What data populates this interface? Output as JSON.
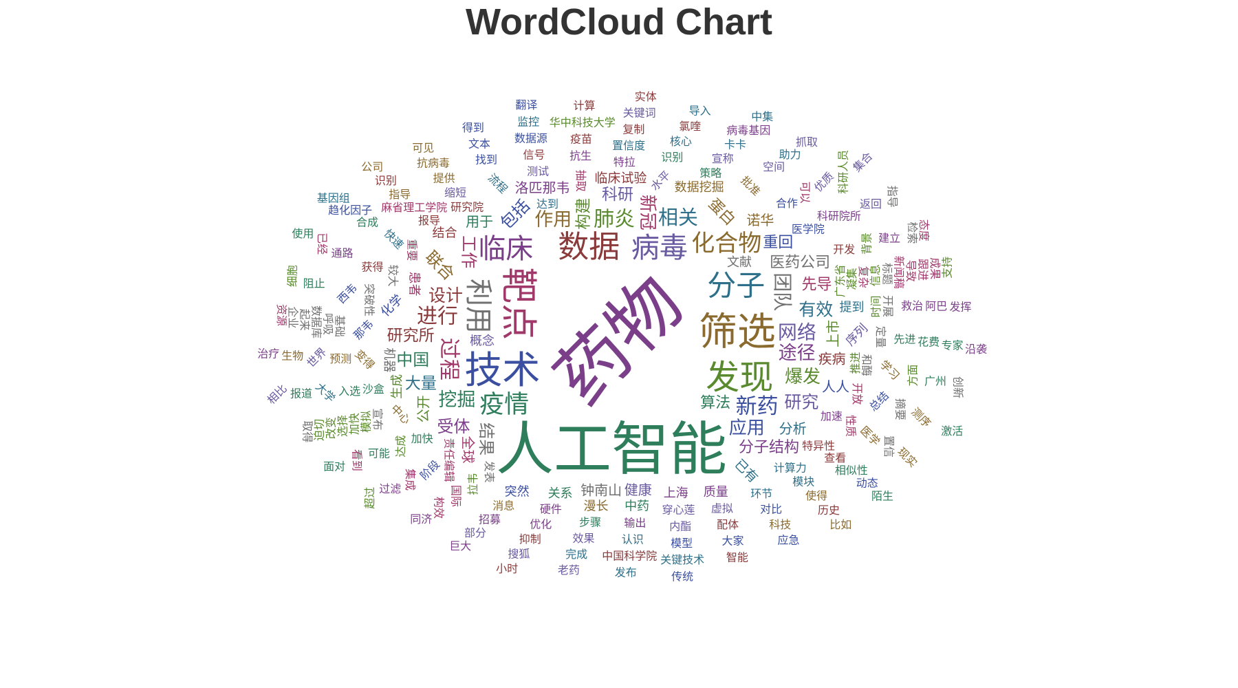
{
  "chart_data": {
    "type": "wordcloud",
    "title": "WordCloud Chart",
    "palette": [
      "#7b3f8a",
      "#2e7d5b",
      "#8a6a2e",
      "#3a4fa0",
      "#a0386a",
      "#5a8a2e",
      "#8a3a3a",
      "#2e6f8a",
      "#6a5aa0",
      "#707070"
    ],
    "words": [
      {
        "text": "药物",
        "weight": 100
      },
      {
        "text": "人工智能",
        "weight": 82
      },
      {
        "text": "筛选",
        "weight": 56
      },
      {
        "text": "技术",
        "weight": 55
      },
      {
        "text": "靶点",
        "weight": 54
      },
      {
        "text": "发现",
        "weight": 50
      },
      {
        "text": "数据",
        "weight": 46
      },
      {
        "text": "分子",
        "weight": 44
      },
      {
        "text": "病毒",
        "weight": 43
      },
      {
        "text": "利用",
        "weight": 42
      },
      {
        "text": "临床",
        "weight": 42
      },
      {
        "text": "疫情",
        "weight": 38
      },
      {
        "text": "化合物",
        "weight": 36
      },
      {
        "text": "新药",
        "weight": 34
      },
      {
        "text": "过程",
        "weight": 34
      },
      {
        "text": "肺炎",
        "weight": 33
      },
      {
        "text": "进行",
        "weight": 33
      },
      {
        "text": "相关",
        "weight": 32
      },
      {
        "text": "网络",
        "weight": 31
      },
      {
        "text": "团队",
        "weight": 31
      },
      {
        "text": "途径",
        "weight": 30
      },
      {
        "text": "挖掘",
        "weight": 30
      },
      {
        "text": "作用",
        "weight": 30
      },
      {
        "text": "应用",
        "weight": 29
      },
      {
        "text": "新冠",
        "weight": 29
      },
      {
        "text": "爆发",
        "weight": 29
      },
      {
        "text": "设计",
        "weight": 28
      },
      {
        "text": "有效",
        "weight": 28
      },
      {
        "text": "研究",
        "weight": 28
      },
      {
        "text": "结果",
        "weight": 27
      },
      {
        "text": "受体",
        "weight": 27
      },
      {
        "text": "中国",
        "weight": 27
      },
      {
        "text": "联合",
        "weight": 27
      },
      {
        "text": "包括",
        "weight": 27
      },
      {
        "text": "工作",
        "weight": 27
      },
      {
        "text": "构建",
        "weight": 26
      },
      {
        "text": "研究所",
        "weight": 26
      },
      {
        "text": "大量",
        "weight": 26
      },
      {
        "text": "科研",
        "weight": 26
      },
      {
        "text": "医药公司",
        "weight": 25
      },
      {
        "text": "分子结构",
        "weight": 25
      },
      {
        "text": "算法",
        "weight": 25
      },
      {
        "text": "蛋白",
        "weight": 25
      },
      {
        "text": "重回",
        "weight": 25
      },
      {
        "text": "先导",
        "weight": 25
      },
      {
        "text": "上市",
        "weight": 24
      },
      {
        "text": "疾病",
        "weight": 24
      },
      {
        "text": "分析",
        "weight": 24
      },
      {
        "text": "健康",
        "weight": 24
      },
      {
        "text": "钟南山",
        "weight": 24
      },
      {
        "text": "洛匹那韦",
        "weight": 24
      },
      {
        "text": "用于",
        "weight": 24
      },
      {
        "text": "诺华",
        "weight": 24
      },
      {
        "text": "人人",
        "weight": 24
      },
      {
        "text": "全球",
        "weight": 24
      },
      {
        "text": "公开",
        "weight": 24
      },
      {
        "text": "临床试验",
        "weight": 23
      },
      {
        "text": "已有",
        "weight": 23
      },
      {
        "text": "概念",
        "weight": 22
      },
      {
        "text": "文献",
        "weight": 22
      },
      {
        "text": "上海",
        "weight": 22
      },
      {
        "text": "关系",
        "weight": 22
      },
      {
        "text": "数据挖掘",
        "weight": 22
      },
      {
        "text": "化学",
        "weight": 22
      },
      {
        "text": "患者",
        "weight": 22
      },
      {
        "text": "生成",
        "weight": 22
      },
      {
        "text": "结合",
        "weight": 22
      },
      {
        "text": "提到",
        "weight": 22
      },
      {
        "text": "序列",
        "weight": 22
      },
      {
        "text": "机器",
        "weight": 22
      },
      {
        "text": "质量",
        "weight": 22
      },
      {
        "text": "中药",
        "weight": 22
      },
      {
        "text": "漫长",
        "weight": 22
      },
      {
        "text": "突然",
        "weight": 22
      },
      {
        "text": "责任编辑",
        "weight": 20
      },
      {
        "text": "广东省",
        "weight": 20
      },
      {
        "text": "研究院",
        "weight": 20
      },
      {
        "text": "达到",
        "weight": 20
      },
      {
        "text": "水平",
        "weight": 20
      },
      {
        "text": "发表",
        "weight": 20
      },
      {
        "text": "加速",
        "weight": 20
      },
      {
        "text": "加快",
        "weight": 20
      },
      {
        "text": "中心",
        "weight": 20
      },
      {
        "text": "医学院",
        "weight": 20
      },
      {
        "text": "抽取",
        "weight": 20
      },
      {
        "text": "推进",
        "weight": 20
      },
      {
        "text": "特异性",
        "weight": 20
      },
      {
        "text": "计算力",
        "weight": 20
      },
      {
        "text": "穿心莲",
        "weight": 20
      },
      {
        "text": "较大",
        "weight": 20
      },
      {
        "text": "硬件",
        "weight": 20
      },
      {
        "text": "沙盒",
        "weight": 20
      },
      {
        "text": "变得",
        "weight": 20
      },
      {
        "text": "那韦",
        "weight": 20
      },
      {
        "text": "重要",
        "weight": 20
      },
      {
        "text": "凝集",
        "weight": 20
      },
      {
        "text": "报导",
        "weight": 20
      },
      {
        "text": "流程",
        "weight": 20
      },
      {
        "text": "测试",
        "weight": 20
      },
      {
        "text": "和酶",
        "weight": 20
      },
      {
        "text": "特拉",
        "weight": 20
      },
      {
        "text": "策略",
        "weight": 20
      },
      {
        "text": "批准",
        "weight": 20
      },
      {
        "text": "合作",
        "weight": 20
      },
      {
        "text": "开放",
        "weight": 20
      },
      {
        "text": "拉韦",
        "weight": 20
      },
      {
        "text": "开发",
        "weight": 20
      },
      {
        "text": "环节",
        "weight": 20
      },
      {
        "text": "虚拟",
        "weight": 20
      },
      {
        "text": "突破性",
        "weight": 20
      },
      {
        "text": "输出",
        "weight": 20
      },
      {
        "text": "步骤",
        "weight": 20
      },
      {
        "text": "消息",
        "weight": 20
      },
      {
        "text": "阶段",
        "weight": 20
      },
      {
        "text": "复杂",
        "weight": 20
      },
      {
        "text": "时间",
        "weight": 20
      },
      {
        "text": "获得",
        "weight": 20
      },
      {
        "text": "快速",
        "weight": 20
      },
      {
        "text": "缩短",
        "weight": 20
      },
      {
        "text": "定量",
        "weight": 20
      },
      {
        "text": "抗生",
        "weight": 20
      },
      {
        "text": "识别",
        "weight": 20
      },
      {
        "text": "学习",
        "weight": 20
      },
      {
        "text": "总结",
        "weight": 20
      },
      {
        "text": "性质",
        "weight": 20
      },
      {
        "text": "达成",
        "weight": 20
      },
      {
        "text": "查看",
        "weight": 20
      },
      {
        "text": "模块",
        "weight": 20
      },
      {
        "text": "内酯",
        "weight": 20
      },
      {
        "text": "宣布",
        "weight": 20
      },
      {
        "text": "优化",
        "weight": 20
      },
      {
        "text": "入选",
        "weight": 20
      },
      {
        "text": "预测",
        "weight": 20
      },
      {
        "text": "西韦",
        "weight": 20
      },
      {
        "text": "麻省理工学院",
        "weight": 20
      },
      {
        "text": "信息",
        "weight": 20
      },
      {
        "text": "信号",
        "weight": 20
      },
      {
        "text": "置信度",
        "weight": 20
      },
      {
        "text": "宣称",
        "weight": 20
      },
      {
        "text": "开展",
        "weight": 20
      },
      {
        "text": "科研院所",
        "weight": 20
      },
      {
        "text": "先进",
        "weight": 20
      },
      {
        "text": "医学",
        "weight": 20
      },
      {
        "text": "对比",
        "weight": 20
      },
      {
        "text": "国际",
        "weight": 20
      },
      {
        "text": "模拟",
        "weight": 20
      },
      {
        "text": "配体",
        "weight": 20
      },
      {
        "text": "认识",
        "weight": 20
      },
      {
        "text": "效果",
        "weight": 20
      },
      {
        "text": "基础",
        "weight": 20
      },
      {
        "text": "招募",
        "weight": 20
      },
      {
        "text": "可能",
        "weight": 20
      },
      {
        "text": "提供",
        "weight": 20
      },
      {
        "text": "找到",
        "weight": 20
      },
      {
        "text": "可以",
        "weight": 20
      },
      {
        "text": "背景",
        "weight": 20
      },
      {
        "text": "疫苗",
        "weight": 20
      },
      {
        "text": "核心",
        "weight": 20
      },
      {
        "text": "空间",
        "weight": 20
      },
      {
        "text": "标题",
        "weight": 20
      },
      {
        "text": "救治",
        "weight": 20
      },
      {
        "text": "相似性",
        "weight": 20
      },
      {
        "text": "使得",
        "weight": 20
      },
      {
        "text": "模型",
        "weight": 20
      },
      {
        "text": "集成",
        "weight": 20
      },
      {
        "text": "加快",
        "weight": 20
      },
      {
        "text": "抑制",
        "weight": 20
      },
      {
        "text": "大学",
        "weight": 20
      },
      {
        "text": "世界",
        "weight": 20
      },
      {
        "text": "呼吸",
        "weight": 20
      },
      {
        "text": "通路",
        "weight": 20
      },
      {
        "text": "合成",
        "weight": 20
      },
      {
        "text": "指导",
        "weight": 20
      },
      {
        "text": "数据源",
        "weight": 20
      },
      {
        "text": "新闻稿",
        "weight": 20
      },
      {
        "text": "方面",
        "weight": 20
      },
      {
        "text": "复制",
        "weight": 20
      },
      {
        "text": "卡卡",
        "weight": 20
      },
      {
        "text": "优质",
        "weight": 20
      },
      {
        "text": "摘要",
        "weight": 20
      },
      {
        "text": "建立",
        "weight": 20
      },
      {
        "text": "花费",
        "weight": 20
      },
      {
        "text": "科技",
        "weight": 20
      },
      {
        "text": "大家",
        "weight": 20
      },
      {
        "text": "构效",
        "weight": 20
      },
      {
        "text": "选择",
        "weight": 20
      },
      {
        "text": "中国科学院",
        "weight": 20
      },
      {
        "text": "完成",
        "weight": 20
      },
      {
        "text": "部分",
        "weight": 20
      },
      {
        "text": "数据库",
        "weight": 20
      },
      {
        "text": "过滤",
        "weight": 20
      },
      {
        "text": "阻止",
        "weight": 20
      },
      {
        "text": "抗病毒",
        "weight": 20
      },
      {
        "text": "文本",
        "weight": 20
      },
      {
        "text": "导致",
        "weight": 20
      },
      {
        "text": "华中科技大学",
        "weight": 20
      },
      {
        "text": "氯喹",
        "weight": 20
      },
      {
        "text": "助力",
        "weight": 20
      },
      {
        "text": "返回",
        "weight": 20
      },
      {
        "text": "置信",
        "weight": 20
      },
      {
        "text": "阿巴",
        "weight": 20
      },
      {
        "text": "广州",
        "weight": 20
      },
      {
        "text": "测序",
        "weight": 20
      },
      {
        "text": "动态",
        "weight": 20
      },
      {
        "text": "看到",
        "weight": 20
      },
      {
        "text": "改变",
        "weight": 20
      },
      {
        "text": "历史",
        "weight": 20
      },
      {
        "text": "关键技术",
        "weight": 20
      },
      {
        "text": "搜狐",
        "weight": 20
      },
      {
        "text": "起来",
        "weight": 20
      },
      {
        "text": "同济",
        "weight": 20
      },
      {
        "text": "报道",
        "weight": 20
      },
      {
        "text": "生物",
        "weight": 20
      },
      {
        "text": "趋化因子",
        "weight": 20
      },
      {
        "text": "跟进",
        "weight": 20
      },
      {
        "text": "迫切",
        "weight": 20
      },
      {
        "text": "识别",
        "weight": 20
      },
      {
        "text": "监控",
        "weight": 20
      },
      {
        "text": "关键词",
        "weight": 20
      },
      {
        "text": "企业",
        "weight": 20
      },
      {
        "text": "病毒基因",
        "weight": 20
      },
      {
        "text": "专家",
        "weight": 20
      },
      {
        "text": "现实",
        "weight": 20
      },
      {
        "text": "应急",
        "weight": 20
      },
      {
        "text": "已经",
        "weight": 20
      },
      {
        "text": "科研人员",
        "weight": 20
      },
      {
        "text": "智能",
        "weight": 20
      },
      {
        "text": "发布",
        "weight": 20
      },
      {
        "text": "老药",
        "weight": 20
      },
      {
        "text": "检索",
        "weight": 20
      },
      {
        "text": "巨大",
        "weight": 20
      },
      {
        "text": "面对",
        "weight": 20
      },
      {
        "text": "可见",
        "weight": 20
      },
      {
        "text": "得到",
        "weight": 20
      },
      {
        "text": "成果",
        "weight": 20
      },
      {
        "text": "超过",
        "weight": 20
      },
      {
        "text": "计算",
        "weight": 20
      },
      {
        "text": "导入",
        "weight": 20
      },
      {
        "text": "抓取",
        "weight": 20
      },
      {
        "text": "取得",
        "weight": 20
      },
      {
        "text": "发挥",
        "weight": 20
      },
      {
        "text": "陌生",
        "weight": 20
      },
      {
        "text": "比如",
        "weight": 20
      },
      {
        "text": "传统",
        "weight": 20
      },
      {
        "text": "资源",
        "weight": 20
      },
      {
        "text": "细胞",
        "weight": 20
      },
      {
        "text": "小时",
        "weight": 20
      },
      {
        "text": "基因组",
        "weight": 20
      },
      {
        "text": "相比",
        "weight": 20
      },
      {
        "text": "指导",
        "weight": 20
      },
      {
        "text": "治疗",
        "weight": 20
      },
      {
        "text": "使用",
        "weight": 20
      },
      {
        "text": "公司",
        "weight": 20
      },
      {
        "text": "翻译",
        "weight": 20
      },
      {
        "text": "态度",
        "weight": 20
      },
      {
        "text": "支持",
        "weight": 20
      },
      {
        "text": "实体",
        "weight": 20
      },
      {
        "text": "中集",
        "weight": 20
      },
      {
        "text": "集合",
        "weight": 20
      },
      {
        "text": "创新",
        "weight": 20
      },
      {
        "text": "沿袭",
        "weight": 20
      },
      {
        "text": "激活",
        "weight": 20
      }
    ]
  }
}
